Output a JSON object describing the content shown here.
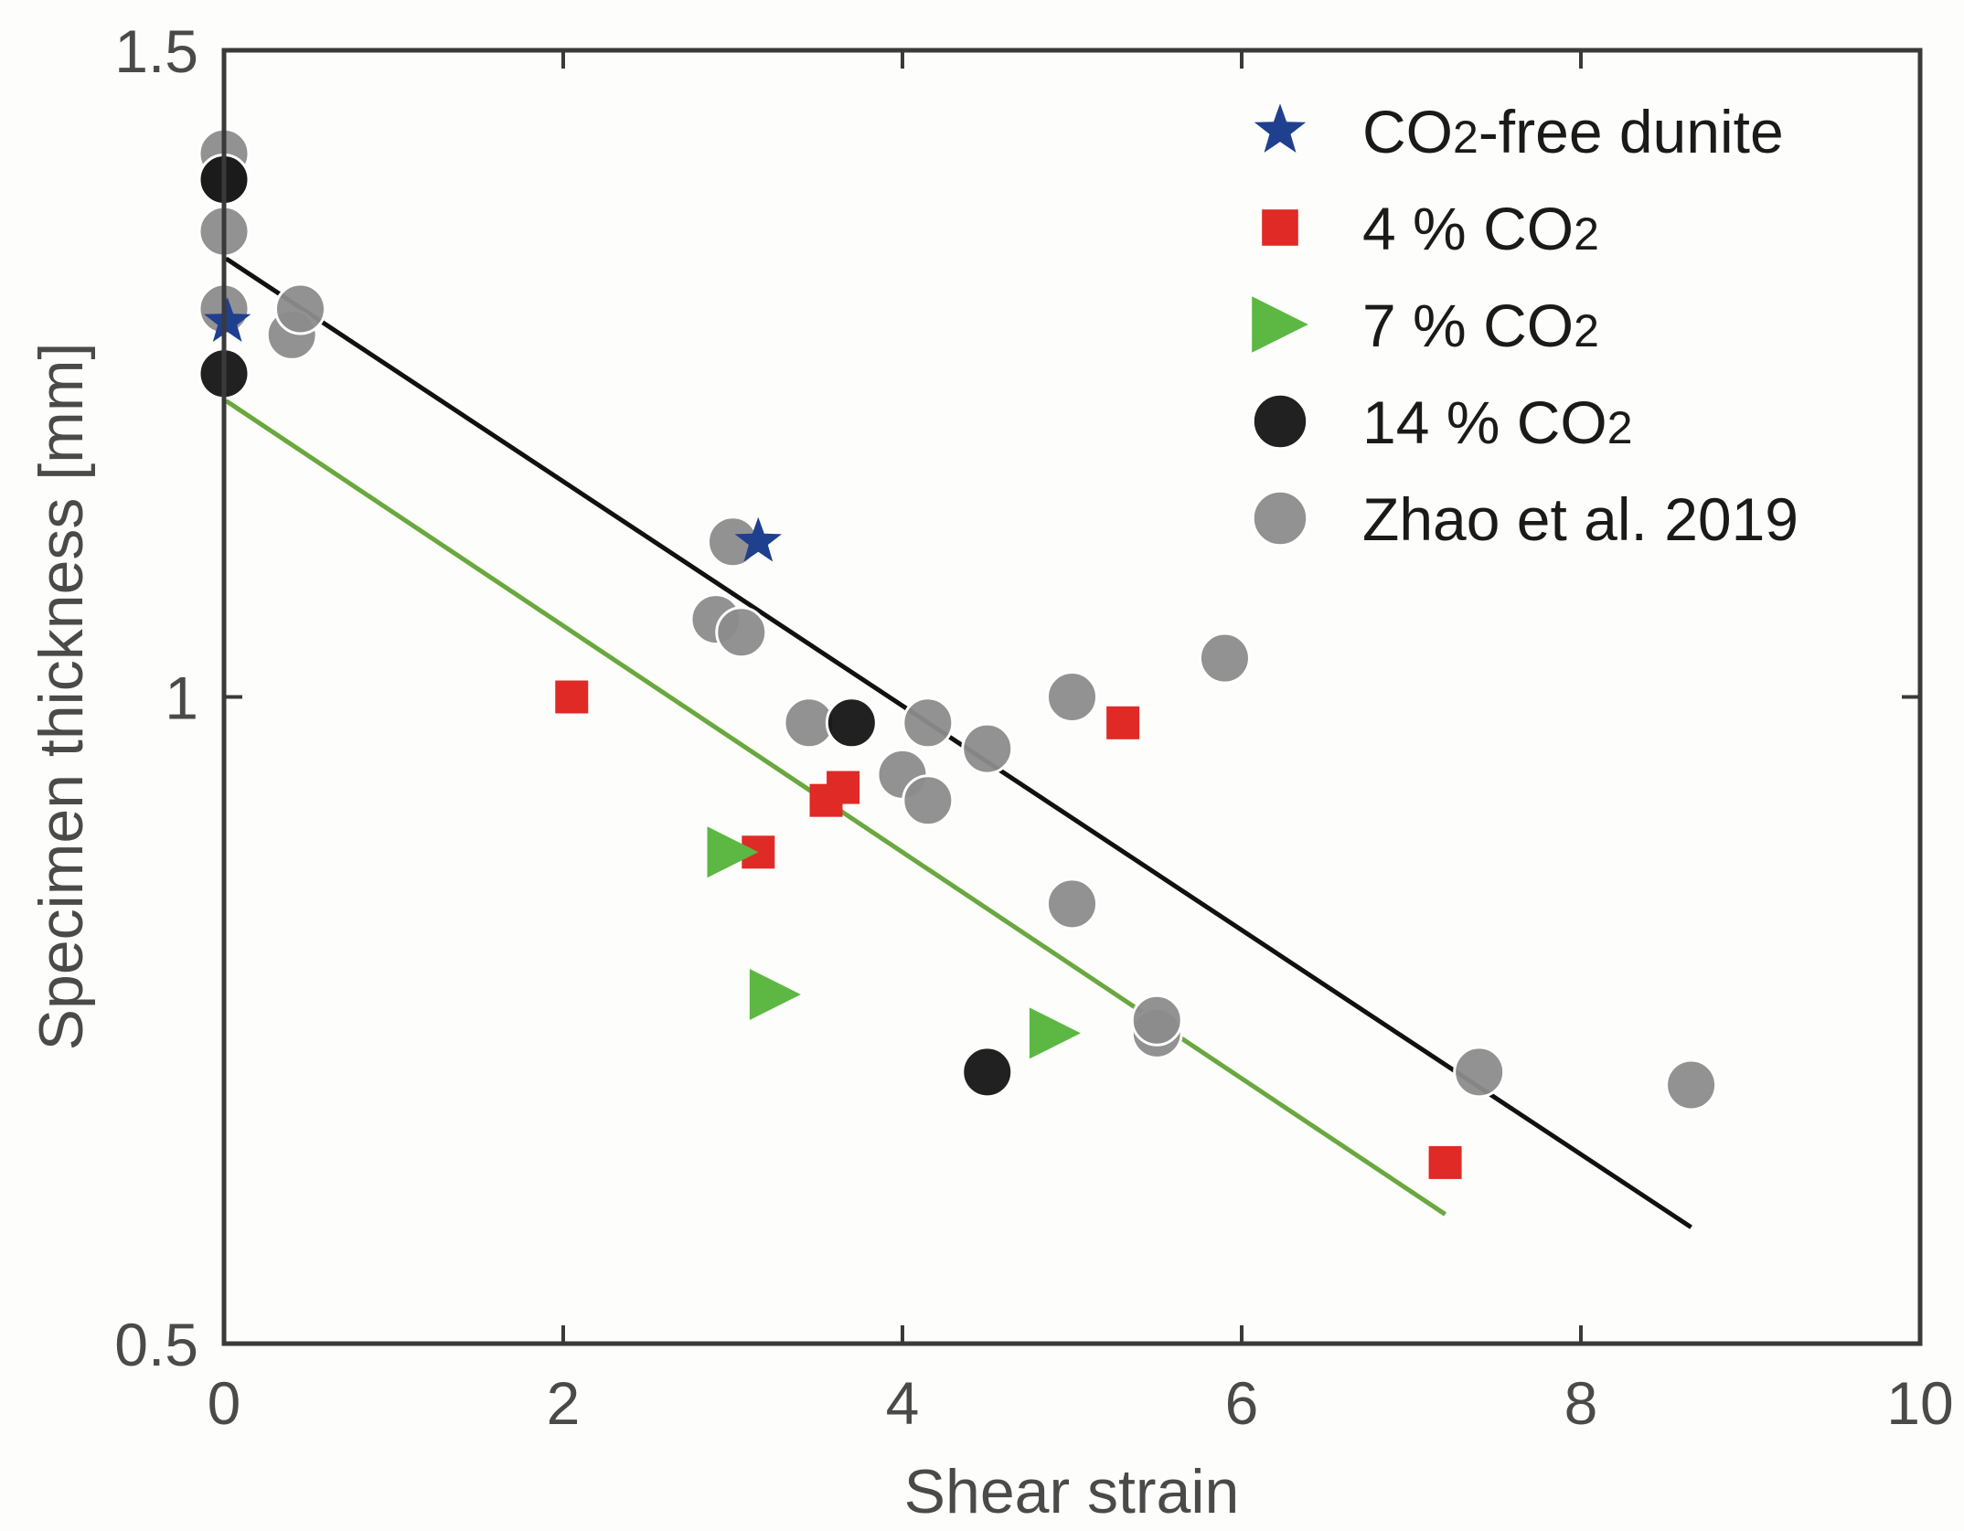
{
  "chart_data": {
    "type": "scatter",
    "title": "",
    "xlabel": "Shear strain",
    "ylabel": "Specimen thickness [mm]",
    "xlim": [
      0,
      10
    ],
    "ylim": [
      0.5,
      1.5
    ],
    "xticks": [
      0,
      2,
      4,
      6,
      8,
      10
    ],
    "xtick_labels": [
      "0",
      "2",
      "4",
      "6",
      "8",
      "10"
    ],
    "yticks": [
      0.5,
      1,
      1.5
    ],
    "ytick_labels": [
      "0.5",
      "1",
      "1.5"
    ],
    "grid": false,
    "legend_position": "top-right",
    "series": [
      {
        "name": "Zhao et al. 2019",
        "legend_main": "Zhao et al. 2019",
        "legend_sub": "",
        "legend_suffix": "",
        "marker": "circle",
        "color": "#8c8c8c",
        "points": [
          [
            0,
            1.42
          ],
          [
            0,
            1.4
          ],
          [
            0,
            1.36
          ],
          [
            0,
            1.3
          ],
          [
            0.4,
            1.28
          ],
          [
            0.45,
            1.3
          ],
          [
            3.0,
            1.12
          ],
          [
            2.9,
            1.06
          ],
          [
            3.05,
            1.05
          ],
          [
            3.45,
            0.98
          ],
          [
            4.15,
            0.98
          ],
          [
            4.0,
            0.94
          ],
          [
            4.15,
            0.92
          ],
          [
            4.5,
            0.96
          ],
          [
            5.0,
            1.0
          ],
          [
            5.9,
            1.03
          ],
          [
            5.0,
            0.84
          ],
          [
            5.5,
            0.74
          ],
          [
            5.5,
            0.75
          ],
          [
            7.4,
            0.71
          ],
          [
            8.65,
            0.7
          ]
        ]
      },
      {
        "name": "CO2-free dunite",
        "legend_main": "CO",
        "legend_sub": "2",
        "legend_suffix": "-free dunite",
        "marker": "star",
        "color": "#1f3f8f",
        "points": [
          [
            0.02,
            1.29
          ],
          [
            3.15,
            1.12
          ]
        ]
      },
      {
        "name": "4 % CO2",
        "legend_main": "4 % CO",
        "legend_sub": "2",
        "legend_suffix": "",
        "marker": "square",
        "color": "#e02a26",
        "points": [
          [
            2.05,
            1.0
          ],
          [
            3.15,
            0.88
          ],
          [
            3.55,
            0.92
          ],
          [
            3.65,
            0.93
          ],
          [
            5.3,
            0.98
          ],
          [
            7.2,
            0.64
          ]
        ]
      },
      {
        "name": "7 % CO2",
        "legend_main": "7 % CO",
        "legend_sub": "2",
        "legend_suffix": "",
        "marker": "triangle-right",
        "color": "#5cb843",
        "points": [
          [
            3.0,
            0.88
          ],
          [
            3.25,
            0.77
          ],
          [
            4.9,
            0.74
          ]
        ]
      },
      {
        "name": "14 % CO2",
        "legend_main": "14 % CO",
        "legend_sub": "2",
        "legend_suffix": "",
        "marker": "circle",
        "color": "#151515",
        "points": [
          [
            0,
            1.4
          ],
          [
            0,
            1.25
          ],
          [
            3.7,
            0.98
          ],
          [
            4.5,
            0.71
          ]
        ]
      }
    ],
    "fit_lines": [
      {
        "name": "fit-zhao",
        "color": "#111111",
        "points": [
          [
            0,
            1.34
          ],
          [
            8.65,
            0.59
          ]
        ]
      },
      {
        "name": "fit-co2",
        "color": "#6aa83e",
        "points": [
          [
            0,
            1.23
          ],
          [
            7.2,
            0.6
          ]
        ]
      }
    ]
  }
}
